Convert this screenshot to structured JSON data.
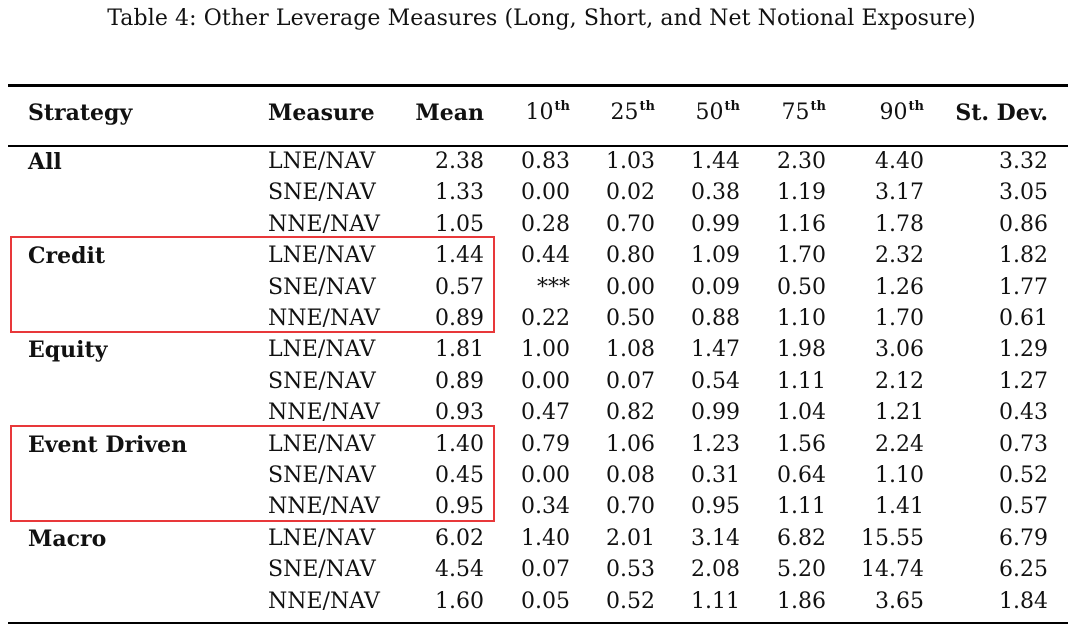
{
  "caption": "Table 4: Other Leverage Measures (Long, Short, and Net Notional Exposure)",
  "headers": {
    "strategy": "Strategy",
    "measure": "Measure",
    "mean": "Mean",
    "p10": {
      "base": "10",
      "sup": "th"
    },
    "p25": {
      "base": "25",
      "sup": "th"
    },
    "p50": {
      "base": "50",
      "sup": "th"
    },
    "p75": {
      "base": "75",
      "sup": "th"
    },
    "p90": {
      "base": "90",
      "sup": "th"
    },
    "stdev": "St. Dev."
  },
  "groups": [
    {
      "strategy": "All",
      "rows": [
        {
          "measure": "LNE/NAV",
          "mean": "2.38",
          "p10": "0.83",
          "p25": "1.03",
          "p50": "1.44",
          "p75": "2.30",
          "p90": "4.40",
          "stdev": "3.32"
        },
        {
          "measure": "SNE/NAV",
          "mean": "1.33",
          "p10": "0.00",
          "p25": "0.02",
          "p50": "0.38",
          "p75": "1.19",
          "p90": "3.17",
          "stdev": "3.05"
        },
        {
          "measure": "NNE/NAV",
          "mean": "1.05",
          "p10": "0.28",
          "p25": "0.70",
          "p50": "0.99",
          "p75": "1.16",
          "p90": "1.78",
          "stdev": "0.86"
        }
      ]
    },
    {
      "strategy": "Credit",
      "rows": [
        {
          "measure": "LNE/NAV",
          "mean": "1.44",
          "p10": "0.44",
          "p25": "0.80",
          "p50": "1.09",
          "p75": "1.70",
          "p90": "2.32",
          "stdev": "1.82"
        },
        {
          "measure": "SNE/NAV",
          "mean": "0.57",
          "p10": "***",
          "p25": "0.00",
          "p50": "0.09",
          "p75": "0.50",
          "p90": "1.26",
          "stdev": "1.77"
        },
        {
          "measure": "NNE/NAV",
          "mean": "0.89",
          "p10": "0.22",
          "p25": "0.50",
          "p50": "0.88",
          "p75": "1.10",
          "p90": "1.70",
          "stdev": "0.61"
        }
      ]
    },
    {
      "strategy": "Equity",
      "rows": [
        {
          "measure": "LNE/NAV",
          "mean": "1.81",
          "p10": "1.00",
          "p25": "1.08",
          "p50": "1.47",
          "p75": "1.98",
          "p90": "3.06",
          "stdev": "1.29"
        },
        {
          "measure": "SNE/NAV",
          "mean": "0.89",
          "p10": "0.00",
          "p25": "0.07",
          "p50": "0.54",
          "p75": "1.11",
          "p90": "2.12",
          "stdev": "1.27"
        },
        {
          "measure": "NNE/NAV",
          "mean": "0.93",
          "p10": "0.47",
          "p25": "0.82",
          "p50": "0.99",
          "p75": "1.04",
          "p90": "1.21",
          "stdev": "0.43"
        }
      ]
    },
    {
      "strategy": "Event Driven",
      "rows": [
        {
          "measure": "LNE/NAV",
          "mean": "1.40",
          "p10": "0.79",
          "p25": "1.06",
          "p50": "1.23",
          "p75": "1.56",
          "p90": "2.24",
          "stdev": "0.73"
        },
        {
          "measure": "SNE/NAV",
          "mean": "0.45",
          "p10": "0.00",
          "p25": "0.08",
          "p50": "0.31",
          "p75": "0.64",
          "p90": "1.10",
          "stdev": "0.52"
        },
        {
          "measure": "NNE/NAV",
          "mean": "0.95",
          "p10": "0.34",
          "p25": "0.70",
          "p50": "0.95",
          "p75": "1.11",
          "p90": "1.41",
          "stdev": "0.57"
        }
      ]
    },
    {
      "strategy": "Macro",
      "rows": [
        {
          "measure": "LNE/NAV",
          "mean": "6.02",
          "p10": "1.40",
          "p25": "2.01",
          "p50": "3.14",
          "p75": "6.82",
          "p90": "15.55",
          "stdev": "6.79"
        },
        {
          "measure": "SNE/NAV",
          "mean": "4.54",
          "p10": "0.07",
          "p25": "0.53",
          "p50": "2.08",
          "p75": "5.20",
          "p90": "14.74",
          "stdev": "6.25"
        },
        {
          "measure": "NNE/NAV",
          "mean": "1.60",
          "p10": "0.05",
          "p25": "0.52",
          "p50": "1.11",
          "p75": "1.86",
          "p90": "3.65",
          "stdev": "1.84"
        }
      ]
    }
  ],
  "highlighted_groups": [
    "Credit",
    "Event Driven"
  ],
  "highlight_color": "#e8383a"
}
